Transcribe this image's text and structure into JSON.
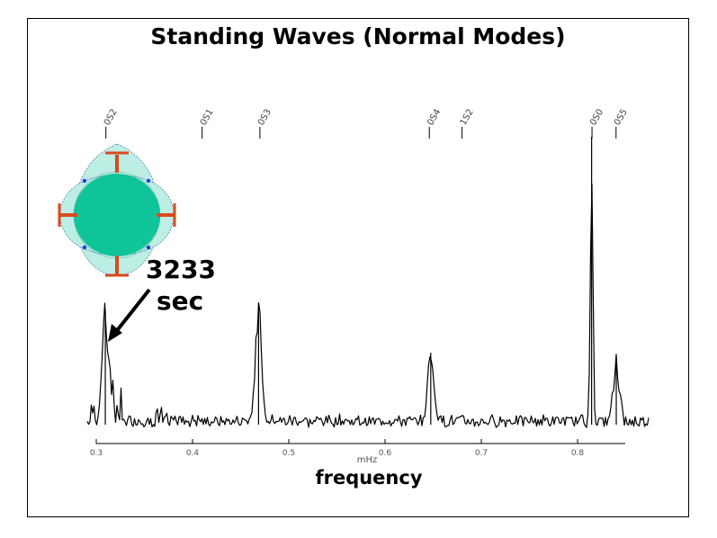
{
  "slide": {
    "title": "Standing Waves (Normal Modes)",
    "annotation_value": "3233",
    "annotation_unit": "sec"
  },
  "colors": {
    "trace": "#000000",
    "body_fill": "#10c49a",
    "oscillation_fill": "#bdeee4",
    "marker": "#d94a1e",
    "node_dot": "#1a3fd8"
  },
  "icons": [
    "oscillating-earth-icon",
    "arrow-icon"
  ],
  "chart_data": {
    "type": "line",
    "title": "Standing Waves (Normal Modes)",
    "xlabel": "mHz",
    "x_axis_title": "frequency",
    "ylabel": "",
    "xlim": [
      0.3,
      0.85
    ],
    "x_ticks": [
      "0.3",
      "0.4",
      "0.5",
      "0.6",
      "0.7",
      "0.8"
    ],
    "grid": false,
    "mode_labels": [
      {
        "label": "0S2",
        "x": 0.31
      },
      {
        "label": "0S1",
        "x": 0.41
      },
      {
        "label": "0S3",
        "x": 0.47
      },
      {
        "label": "0S4",
        "x": 0.646
      },
      {
        "label": "1S2",
        "x": 0.68
      },
      {
        "label": "0S0",
        "x": 0.815
      },
      {
        "label": "0S5",
        "x": 0.84
      }
    ],
    "peaks": [
      {
        "label": "0S2",
        "x": 0.3094,
        "amplitude": 0.4
      },
      {
        "label": "0S3",
        "x": 0.4686,
        "amplitude": 0.42
      },
      {
        "label": "0S4",
        "x": 0.6475,
        "amplitude": 0.25
      },
      {
        "label": "0S0",
        "x": 0.8146,
        "amplitude": 1.0
      },
      {
        "label": "0S5",
        "x": 0.8402,
        "amplitude": 0.22
      }
    ],
    "annotation": {
      "text": "3233 sec",
      "x": 0.3094
    }
  }
}
